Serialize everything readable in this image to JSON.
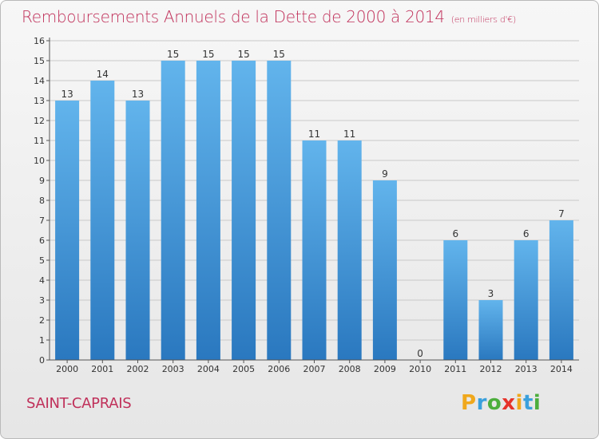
{
  "chart_data": {
    "type": "bar",
    "title": "Remboursements Annuels de la Dette de 2000 à 2014",
    "subtitle": "(en milliers d'€)",
    "categories": [
      "2000",
      "2001",
      "2002",
      "2003",
      "2004",
      "2005",
      "2006",
      "2007",
      "2008",
      "2009",
      "2010",
      "2011",
      "2012",
      "2013",
      "2014"
    ],
    "values": [
      13,
      14,
      13,
      15,
      15,
      15,
      15,
      11,
      11,
      9,
      0,
      6,
      3,
      6,
      7
    ],
    "ylim": [
      0,
      16
    ],
    "yticks": [
      0,
      1,
      2,
      3,
      4,
      5,
      6,
      7,
      8,
      9,
      10,
      11,
      12,
      13,
      14,
      15,
      16
    ],
    "grid": true,
    "xlabel": "",
    "ylabel": ""
  },
  "commune": "SAINT-CAPRAIS",
  "brand": {
    "letters": [
      "P",
      "r",
      "o",
      "x",
      "i",
      "t",
      "i"
    ],
    "colors": [
      "#f0a81c",
      "#3aa0dc",
      "#4cae3c",
      "#e6332a",
      "#f0a81c",
      "#3aa0dc",
      "#4cae3c"
    ]
  },
  "colors": {
    "bar_light": "#62b4ec",
    "bar_dark": "#2a78bf",
    "title": "#c0305a",
    "grid": "#c9c9c9",
    "text": "#333333"
  }
}
